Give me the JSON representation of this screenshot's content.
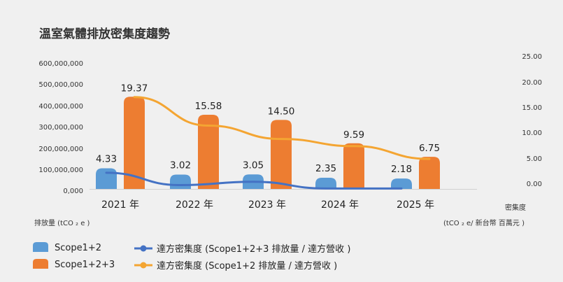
{
  "chart_data": {
    "type": "bar",
    "title": "溫室氣體排放密集度趨勢",
    "categories": [
      "2021 年",
      "2022 年",
      "2023 年",
      "2024 年",
      "2025 年"
    ],
    "left_axis": {
      "ticks": [
        "600,000,000",
        "500,000,000",
        "400,000,000",
        "300,000,000",
        "200,000,000",
        "100,000,000",
        "0,000"
      ],
      "ylim": [
        0,
        600000000
      ],
      "label": "排放量 (tCO ₂ e )"
    },
    "right_axis": {
      "ticks": [
        "25.00",
        "20.00",
        "15.00",
        "10.00",
        "5.00",
        "0.00"
      ],
      "ylim": [
        0,
        25
      ],
      "title": "密集度",
      "unit": "(tCO ₂ e/ 新台幣 百萬元 )"
    },
    "bar_series": [
      {
        "name": "Scope1+2",
        "color": "#5b9bd5",
        "values": [
          4.33,
          3.02,
          3.05,
          2.35,
          2.18
        ],
        "labels": [
          "4.33",
          "3.02",
          "3.05",
          "2.35",
          "2.18"
        ]
      },
      {
        "name": "Scope1+2+3",
        "color": "#ed7d31",
        "values": [
          19.37,
          15.58,
          14.5,
          9.59,
          6.75
        ],
        "labels": [
          "19.37",
          "15.58",
          "14.50",
          "9.59",
          "6.75"
        ]
      }
    ],
    "line_series": [
      {
        "name": "達方密集度 (Scope1+2+3 排放量 / 達方營收 )",
        "color": "#4472c4",
        "values": [
          3.4,
          0.8,
          1.5,
          0.1,
          0.1
        ]
      },
      {
        "name": "達方密集度 (Scope1+2 排放量 / 達方營收 )",
        "color": "#f4a532",
        "values": [
          19.3,
          13.3,
          10.5,
          9.0,
          6.3
        ]
      }
    ],
    "grid": false
  }
}
